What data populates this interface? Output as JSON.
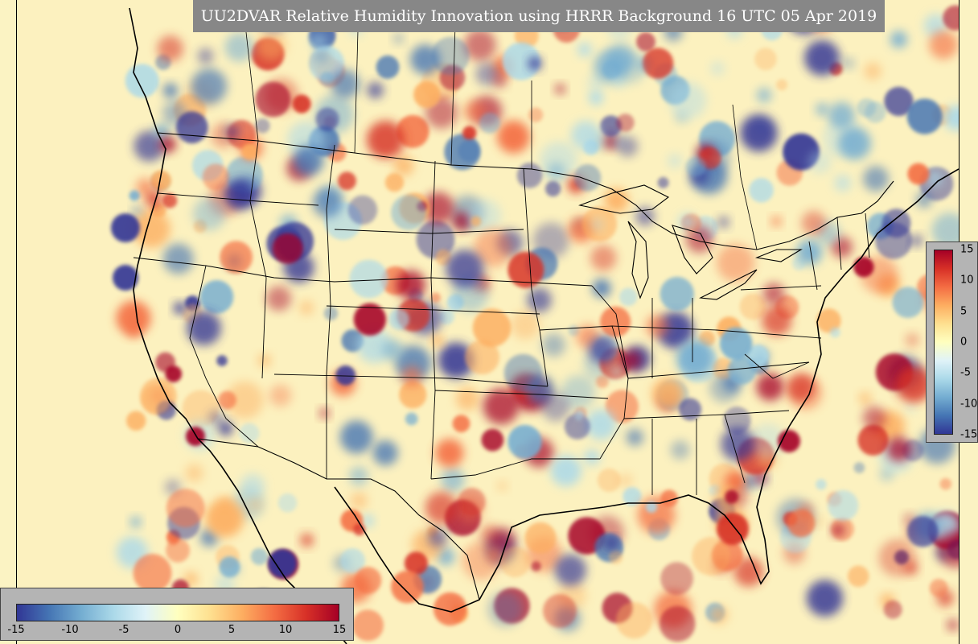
{
  "title": "UU2DVAR Relative Humidity Innovation using HRRR Background 16 UTC 05 Apr 2019",
  "colorbar": {
    "min": -15,
    "max": 15,
    "vertical_ticks": [
      "15",
      "10",
      "5",
      "0",
      "-5",
      "-10",
      "-15"
    ],
    "horizontal_ticks": [
      "-15",
      "-10",
      "-5",
      "0",
      "5",
      "10",
      "15"
    ],
    "colors": [
      "#313695",
      "#4575b4",
      "#74add1",
      "#abd9e9",
      "#e0f3f8",
      "#ffffbf",
      "#fee090",
      "#fdae61",
      "#f46d43",
      "#d73027",
      "#a50026"
    ]
  },
  "map": {
    "region": "contiguous United States",
    "field": "relative humidity innovation",
    "background_color": "#fcf1bf"
  }
}
